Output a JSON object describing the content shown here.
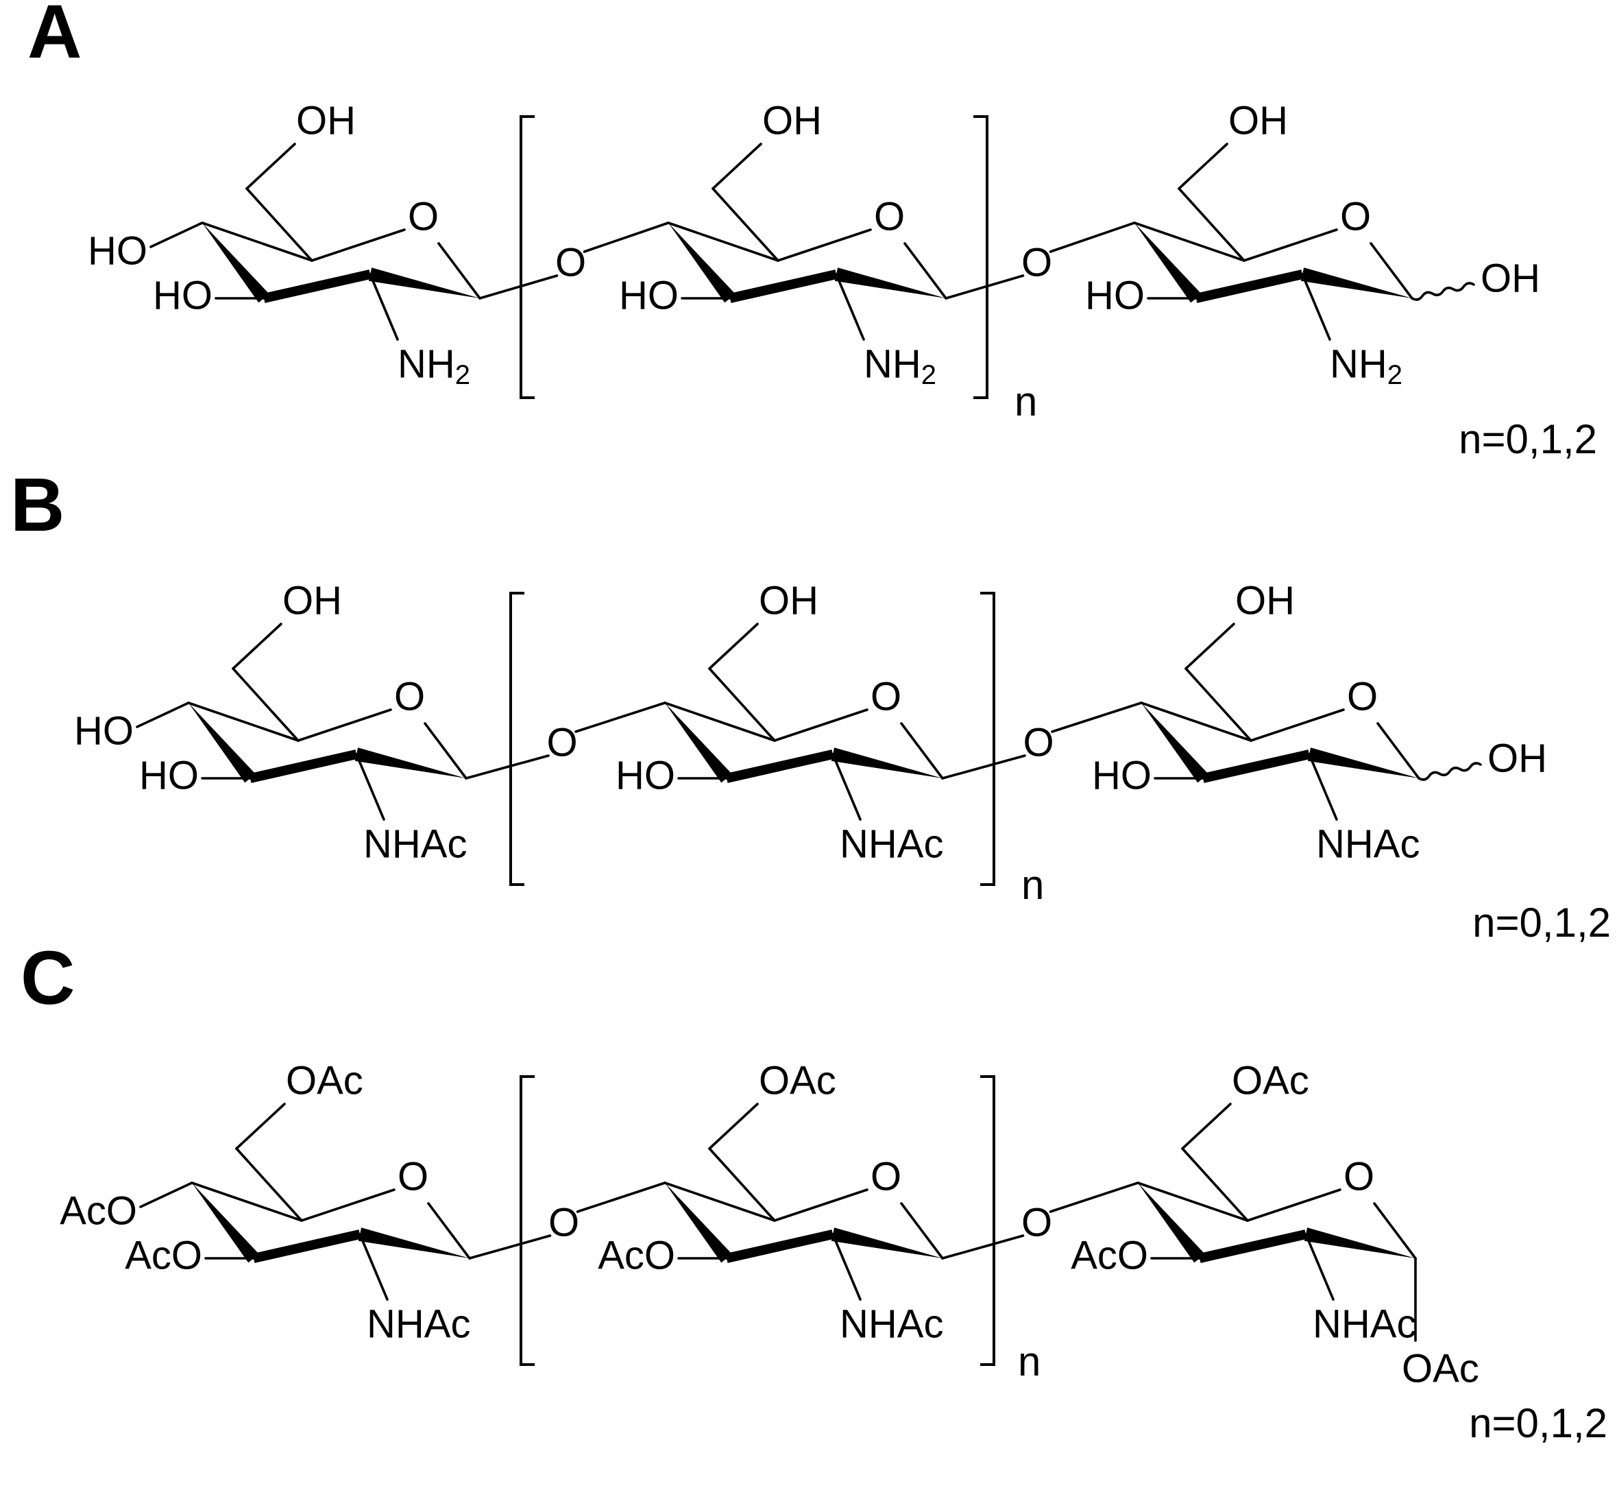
{
  "panels": [
    {
      "label": "A",
      "units": [
        {
          "top": "OH",
          "ring_o": "O",
          "left_o": "HO",
          "left_o2": "HO",
          "amine": "NH",
          "amine_sub": "2"
        },
        {
          "top": "OH",
          "ring_o": "O",
          "link_o": "O",
          "left_o2": "HO",
          "amine": "NH",
          "amine_sub": "2"
        },
        {
          "top": "OH",
          "ring_o": "O",
          "link_o": "O",
          "left_o2": "HO",
          "amine": "NH",
          "amine_sub": "2",
          "anomeric": "OH"
        }
      ],
      "repeat_label": "n",
      "n_range": "n=0,1,2"
    },
    {
      "label": "B",
      "units": [
        {
          "top": "OH",
          "ring_o": "O",
          "left_o": "HO",
          "left_o2": "HO",
          "amine": "NHAc"
        },
        {
          "top": "OH",
          "ring_o": "O",
          "link_o": "O",
          "left_o2": "HO",
          "amine": "NHAc"
        },
        {
          "top": "OH",
          "ring_o": "O",
          "link_o": "O",
          "left_o2": "HO",
          "amine": "NHAc",
          "anomeric": "OH"
        }
      ],
      "repeat_label": "n",
      "n_range": "n=0,1,2"
    },
    {
      "label": "C",
      "units": [
        {
          "top": "OAc",
          "ring_o": "O",
          "left_o": "AcO",
          "left_o2": "AcO",
          "amine": "NHAc"
        },
        {
          "top": "OAc",
          "ring_o": "O",
          "link_o": "O",
          "left_o2": "AcO",
          "amine": "NHAc"
        },
        {
          "top": "OAc",
          "ring_o": "O",
          "link_o": "O",
          "left_o2": "AcO",
          "amine": "NHAc",
          "anomeric": "OAc"
        }
      ],
      "repeat_label": "n",
      "n_range": "n=0,1,2"
    }
  ]
}
